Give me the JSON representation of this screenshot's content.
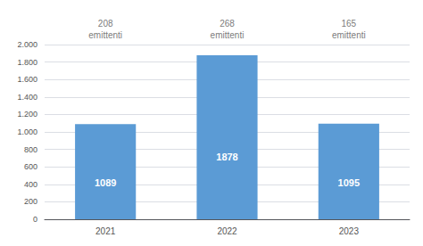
{
  "chart_data": {
    "type": "bar",
    "categories": [
      "2021",
      "2022",
      "2023"
    ],
    "values": [
      1089,
      1878,
      1095
    ],
    "color": "#5B9BD5",
    "data_labels": true,
    "annotations": [
      "208\nemittenti",
      "268\nemittenti",
      "165\nemittenti"
    ],
    "ylim": [
      0,
      2000
    ],
    "yticks": [
      0,
      200,
      400,
      600,
      800,
      {
        "value": 1000,
        "label": "1.000"
      },
      {
        "value": 1200,
        "label": "1.200"
      },
      {
        "value": 1400,
        "label": "1.400"
      },
      {
        "value": 1600,
        "label": "1.600"
      },
      {
        "value": 1800,
        "label": "1.800"
      },
      {
        "value": 2000,
        "label": "2.000"
      }
    ],
    "grid": true
  }
}
